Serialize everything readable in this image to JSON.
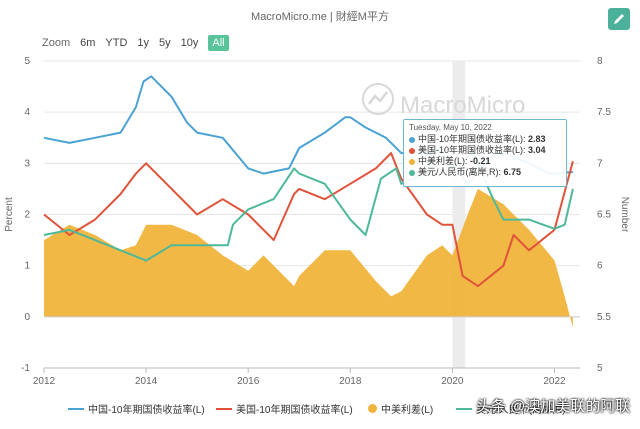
{
  "header": {
    "title": "MacroMicro.me | 財經M平方"
  },
  "zoom": {
    "label": "Zoom",
    "buttons": [
      "6m",
      "YTD",
      "1y",
      "5y",
      "10y",
      "All"
    ],
    "active": "All"
  },
  "watermark": "MacroMicro",
  "tooltip": {
    "date": "Tuesday, May 10, 2022",
    "rows": [
      {
        "label": "中国-10年期国债收益率(L): ",
        "value": "2.83",
        "color": "#4ba3d3"
      },
      {
        "label": "美国-10年期国债收益率(L): ",
        "value": "3.04",
        "color": "#e0533a"
      },
      {
        "label": "中美利差(L): ",
        "value": "-0.21",
        "color": "#f0b43c"
      },
      {
        "label": "美元/人民币(离岸,R): ",
        "value": "6.75",
        "color": "#4db89a"
      }
    ]
  },
  "credit": "头条 @澳加美联的阿联",
  "chart_data": {
    "type": "line",
    "title": "",
    "ylabel": "Percent",
    "y2label": "Number",
    "ylim": [
      -1,
      5
    ],
    "y2lim": [
      5,
      8
    ],
    "y_ticks": [
      "5",
      "4",
      "3",
      "2",
      "1",
      "0",
      "-1"
    ],
    "y2_ticks": [
      "8",
      "7.5",
      "7",
      "6.5",
      "6",
      "5.5",
      "5"
    ],
    "x_ticks": [
      "2012",
      "2014",
      "2016",
      "2018",
      "2020",
      "2022"
    ],
    "xlim": [
      2012.0,
      2022.5
    ],
    "series": [
      {
        "name": "中国-10年期国债收益率(L)",
        "axis": "left",
        "type": "line",
        "color": "#4ba3d3",
        "x": [
          2012.0,
          2012.5,
          2013.0,
          2013.5,
          2013.8,
          2013.95,
          2014.1,
          2014.5,
          2014.8,
          2015.0,
          2015.5,
          2016.0,
          2016.3,
          2016.8,
          2017.0,
          2017.5,
          2017.9,
          2018.0,
          2018.3,
          2018.7,
          2019.0,
          2019.5,
          2020.0,
          2020.3,
          2020.7,
          2021.0,
          2021.5,
          2021.9,
          2022.0,
          2022.36
        ],
        "values": [
          3.5,
          3.4,
          3.5,
          3.6,
          4.1,
          4.6,
          4.7,
          4.3,
          3.8,
          3.6,
          3.5,
          2.9,
          2.8,
          2.9,
          3.3,
          3.6,
          3.9,
          3.9,
          3.7,
          3.5,
          3.2,
          3.2,
          3.0,
          2.6,
          3.1,
          3.2,
          3.0,
          2.8,
          2.8,
          2.83
        ]
      },
      {
        "name": "美国-10年期国债收益率(L)",
        "axis": "left",
        "type": "line",
        "color": "#e0533a",
        "x": [
          2012.0,
          2012.5,
          2013.0,
          2013.5,
          2013.8,
          2014.0,
          2014.5,
          2015.0,
          2015.5,
          2016.0,
          2016.5,
          2016.9,
          2017.0,
          2017.5,
          2018.0,
          2018.5,
          2018.8,
          2019.0,
          2019.5,
          2019.8,
          2020.0,
          2020.2,
          2020.5,
          2021.0,
          2021.2,
          2021.5,
          2022.0,
          2022.36
        ],
        "values": [
          2.0,
          1.6,
          1.9,
          2.4,
          2.8,
          3.0,
          2.5,
          2.0,
          2.3,
          2.0,
          1.5,
          2.4,
          2.5,
          2.3,
          2.6,
          2.9,
          3.2,
          2.7,
          2.0,
          1.8,
          1.8,
          0.8,
          0.6,
          1.0,
          1.6,
          1.3,
          1.7,
          3.04
        ]
      },
      {
        "name": "中美利差(L)",
        "axis": "left",
        "type": "area",
        "color": "#f0b43c",
        "x": [
          2012.0,
          2012.5,
          2013.0,
          2013.5,
          2013.8,
          2014.0,
          2014.5,
          2015.0,
          2015.5,
          2016.0,
          2016.3,
          2016.9,
          2017.0,
          2017.5,
          2018.0,
          2018.5,
          2018.8,
          2019.0,
          2019.5,
          2019.8,
          2020.0,
          2020.3,
          2020.5,
          2021.0,
          2021.5,
          2022.0,
          2022.2,
          2022.36
        ],
        "values": [
          1.5,
          1.8,
          1.6,
          1.3,
          1.4,
          1.8,
          1.8,
          1.6,
          1.2,
          0.9,
          1.2,
          0.6,
          0.8,
          1.3,
          1.3,
          0.7,
          0.4,
          0.5,
          1.2,
          1.4,
          1.2,
          2.0,
          2.5,
          2.2,
          1.7,
          1.1,
          0.4,
          -0.21
        ]
      },
      {
        "name": "美元/人民币(离岸,R)",
        "axis": "right",
        "type": "line",
        "color": "#4db89a",
        "x": [
          2012.0,
          2012.5,
          2013.0,
          2013.5,
          2014.0,
          2014.5,
          2015.0,
          2015.6,
          2015.7,
          2016.0,
          2016.5,
          2016.9,
          2017.0,
          2017.5,
          2018.0,
          2018.3,
          2018.6,
          2018.9,
          2019.0,
          2019.5,
          2019.7,
          2020.0,
          2020.4,
          2020.8,
          2021.0,
          2021.5,
          2022.0,
          2022.2,
          2022.36
        ],
        "values": [
          6.3,
          6.35,
          6.25,
          6.15,
          6.05,
          6.2,
          6.2,
          6.2,
          6.4,
          6.55,
          6.65,
          6.95,
          6.9,
          6.8,
          6.45,
          6.3,
          6.85,
          6.95,
          6.8,
          6.9,
          7.15,
          6.95,
          7.1,
          6.65,
          6.45,
          6.45,
          6.36,
          6.4,
          6.75
        ]
      }
    ]
  },
  "legend": [
    {
      "label": "中国-10年期国债收益率(L)",
      "kind": "line",
      "color": "#4ba3d3"
    },
    {
      "label": "美国-10年期国债收益率(L)",
      "kind": "line",
      "color": "#e0533a"
    },
    {
      "label": "中美利差(L)",
      "kind": "dot",
      "color": "#f0b43c"
    },
    {
      "label": "美元/人民币(离岸,R)",
      "kind": "line",
      "color": "#4db89a"
    }
  ]
}
